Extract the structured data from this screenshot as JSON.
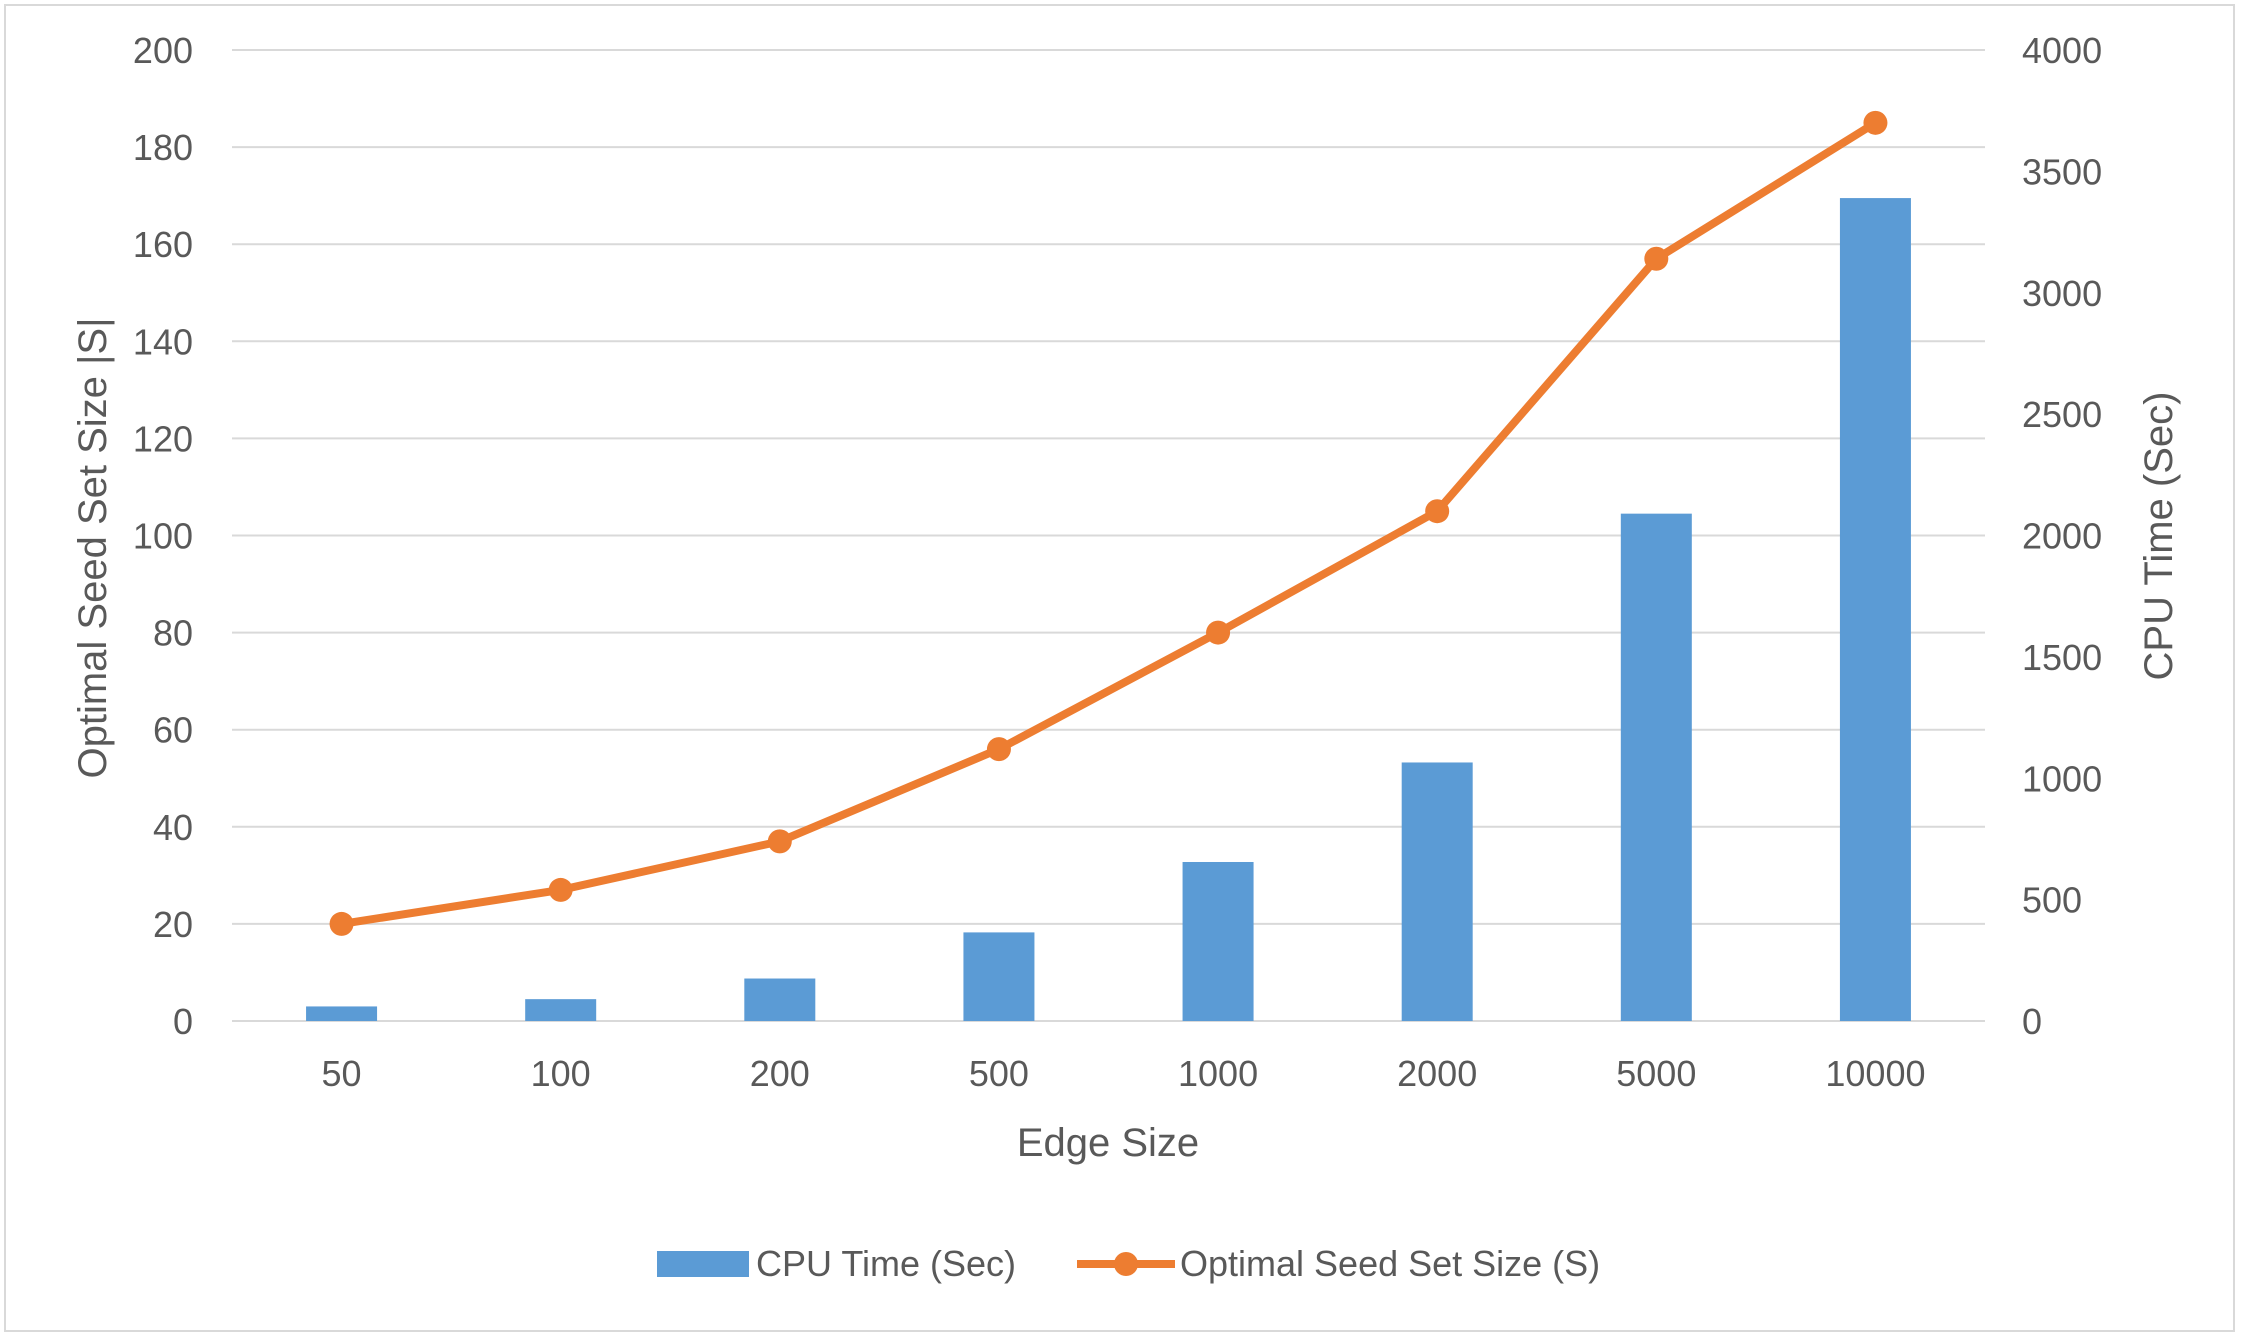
{
  "chart_data": {
    "type": "bar+line",
    "categories": [
      "50",
      "100",
      "200",
      "500",
      "1000",
      "2000",
      "5000",
      "10000"
    ],
    "series": [
      {
        "name": "CPU Time (Sec)",
        "type": "bar",
        "axis": "right",
        "color": "#5b9bd5",
        "values": [
          60,
          90,
          175,
          365,
          655,
          1065,
          2090,
          3390
        ]
      },
      {
        "name": "Optimal Seed Set Size (S)",
        "type": "line",
        "axis": "left",
        "color": "#ed7d31",
        "values": [
          20,
          27,
          37,
          56,
          80,
          105,
          157,
          185
        ]
      }
    ],
    "xlabel": "Edge Size",
    "ylabel_left": "Optimal Seed Set Size |S|",
    "ylabel_right": "CPU Time (Sec)",
    "ylim_left": [
      0,
      200
    ],
    "ylim_right": [
      0,
      4000
    ],
    "yticks_left": [
      "0",
      "20",
      "40",
      "60",
      "80",
      "100",
      "120",
      "140",
      "160",
      "180",
      "200"
    ],
    "yticks_right": [
      "0",
      "500",
      "1000",
      "1500",
      "2000",
      "2500",
      "3000",
      "3500",
      "4000"
    ],
    "grid": true,
    "legend_position": "bottom",
    "gridline_color": "#d9d9d9"
  }
}
